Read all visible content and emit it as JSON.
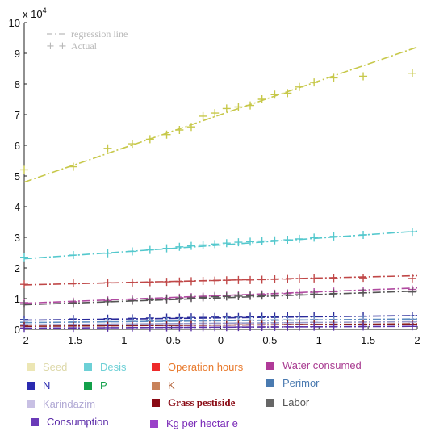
{
  "chart_data": {
    "type": "line",
    "title": "",
    "xlabel": "",
    "ylabel": "",
    "y_multiplier_label": "x 10",
    "y_multiplier_exponent": "4",
    "xlim": [
      -2,
      2
    ],
    "ylim": [
      0,
      100000
    ],
    "x_ticks": [
      "-2",
      "-1.5",
      "-1",
      "-0.5",
      "0",
      "0.5",
      "1",
      "1.5",
      "2"
    ],
    "y_ticks": [
      "0",
      "1",
      "2",
      "3",
      "4",
      "5",
      "6",
      "7",
      "8",
      "9",
      "10"
    ],
    "grid": false,
    "inner_legend": {
      "regression_label": "regression line",
      "actual_label": "Actual",
      "placement": "top-left"
    },
    "x": [
      -2,
      -1.8,
      -1.5,
      -1.15,
      -0.9,
      -0.72,
      -0.55,
      -0.42,
      -0.3,
      -0.18,
      -0.06,
      0.06,
      0.18,
      0.3,
      0.42,
      0.55,
      0.68,
      0.8,
      0.95,
      1.15,
      1.45,
      1.95
    ],
    "series": [
      {
        "name": "Seed",
        "color": "#c7c84a",
        "fit": [
          48000,
          92000
        ],
        "actual": [
          52000,
          null,
          53000,
          59000,
          60500,
          62000,
          63500,
          65000,
          66000,
          69500,
          70500,
          72000,
          72500,
          73000,
          75000,
          76500,
          77000,
          79000,
          80500,
          82000,
          82500,
          83500
        ]
      },
      {
        "name": "Desis",
        "color": "#54c8cd",
        "fit": [
          23000,
          32000
        ],
        "actual": [
          23500,
          null,
          24200,
          24800,
          25400,
          25900,
          26400,
          26900,
          27200,
          27500,
          27800,
          28100,
          28400,
          28600,
          28800,
          29000,
          29200,
          29500,
          29900,
          30300,
          30800,
          31800
        ]
      },
      {
        "name": "Operation hours",
        "color": "#c04848",
        "fit": [
          14500,
          17500
        ],
        "actual": [
          14700,
          null,
          15000,
          15200,
          15300,
          15400,
          15500,
          15600,
          15700,
          15800,
          15900,
          16000,
          16100,
          16100,
          16200,
          16300,
          16400,
          16500,
          16600,
          16700,
          16800,
          16600
        ]
      },
      {
        "name": "Water consumed",
        "color": "#b04aa0",
        "fit": [
          8500,
          13500
        ],
        "actual": [
          8700,
          null,
          9000,
          9400,
          9700,
          9900,
          10100,
          10300,
          10500,
          10700,
          10900,
          11000,
          11200,
          11300,
          11400,
          11600,
          11700,
          11900,
          12100,
          12300,
          12600,
          13000
        ]
      },
      {
        "name": "Labor",
        "color": "#555555",
        "fit": [
          8000,
          12500
        ],
        "actual": [
          8200,
          null,
          8600,
          9000,
          9300,
          9600,
          9800,
          10000,
          10200,
          10400,
          10600,
          10700,
          10800,
          10900,
          11000,
          11100,
          11200,
          11300,
          11500,
          11700,
          11900,
          12200
        ]
      },
      {
        "name": "N",
        "color": "#2a2a9a",
        "fit": [
          3000,
          4500
        ],
        "actual": [
          3200,
          null,
          3400,
          3500,
          3600,
          3700,
          3800,
          3800,
          3900,
          3900,
          4000,
          4000,
          4000,
          4100,
          4100,
          4100,
          4200,
          4200,
          4200,
          4300,
          4300,
          4400
        ]
      },
      {
        "name": "Perimor",
        "color": "#5c8cc0",
        "fit": [
          2200,
          3400
        ],
        "actual": [
          2300,
          null,
          2400,
          2500,
          2600,
          2700,
          2700,
          2800,
          2800,
          2900,
          2900,
          2900,
          3000,
          3000,
          3000,
          3100,
          3100,
          3100,
          3200,
          3200,
          3300,
          3300
        ]
      },
      {
        "name": "Karindazim",
        "color": "#9a9aca",
        "fit": [
          1500,
          2500
        ],
        "actual": [
          1600,
          null,
          1700,
          1700,
          1800,
          1800,
          1900,
          1900,
          1900,
          2000,
          2000,
          2000,
          2100,
          2100,
          2100,
          2200,
          2200,
          2200,
          2300,
          2300,
          2400,
          2400
        ]
      },
      {
        "name": "Grass pestiside",
        "color": "#8a1a1a",
        "fit": [
          1000,
          1800
        ],
        "actual": [
          1100,
          null,
          1100,
          1200,
          1200,
          1300,
          1300,
          1300,
          1400,
          1400,
          1400,
          1400,
          1500,
          1500,
          1500,
          1500,
          1600,
          1600,
          1600,
          1700,
          1700,
          1700
        ]
      },
      {
        "name": "Consumption",
        "color": "#5a32a8",
        "fit": [
          400,
          1000
        ],
        "actual": [
          450,
          null,
          500,
          550,
          600,
          620,
          640,
          660,
          680,
          700,
          720,
          740,
          760,
          780,
          800,
          820,
          840,
          860,
          880,
          900,
          940,
          980
        ]
      }
    ],
    "legend": [
      {
        "label": "Seed",
        "swatch": "#ece6b4",
        "text_color": "#ddd8a8"
      },
      {
        "label": "Desis",
        "swatch": "#6dd0d6",
        "text_color": "#6dd0d6"
      },
      {
        "label": "Operation hours",
        "swatch": "#ee2a2a",
        "text_color": "#e8782a"
      },
      {
        "label": "Water consumed",
        "swatch": "#b03a98",
        "text_color": "#a83a90"
      },
      {
        "label": "N",
        "swatch": "#2a2ab0",
        "text_color": "#2a2ab0"
      },
      {
        "label": "P",
        "swatch": "#12a04a",
        "text_color": "#12a04a"
      },
      {
        "label": "K",
        "swatch": "#c8825a",
        "text_color": "#b86a42"
      },
      {
        "label": "Perimor",
        "swatch": "#4a7ab0",
        "text_color": "#4a7ab0"
      },
      {
        "label": "Karindazim",
        "swatch": "#c8c0e4",
        "text_color": "#b0a8d4"
      },
      {
        "label": "Grass pestiside",
        "swatch": "#8a0a14",
        "text_color": "#8a0a14"
      },
      {
        "label": "Labor",
        "swatch": "#666666",
        "text_color": "#555555"
      },
      {
        "label": "Consumption",
        "swatch": "#6a3ab8",
        "text_color": "#5a2aa8"
      },
      {
        "label": "Kg per hectar e",
        "swatch": "#9a40c8",
        "text_color": "#7a2ab8"
      }
    ]
  }
}
